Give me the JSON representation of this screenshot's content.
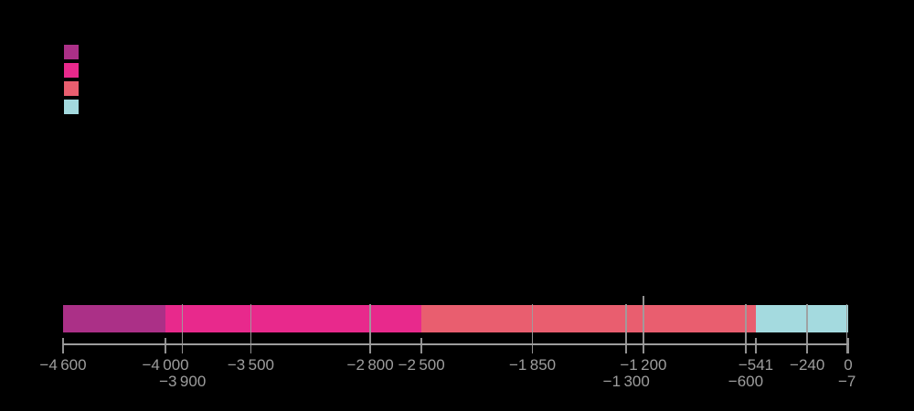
{
  "canvas": {
    "background": "#000000"
  },
  "palette": {
    "segment_purple": "#ab3087",
    "segment_magenta": "#e8298c",
    "segment_red": "#e95e6f",
    "segment_cyan": "#a4dadf",
    "axis_gray": "#9d9d9d"
  },
  "legend": {
    "swatches": [
      {
        "name": "swatch-1",
        "color": "#ab3087"
      },
      {
        "name": "swatch-2",
        "color": "#e8298c"
      },
      {
        "name": "swatch-3",
        "color": "#e95e6f"
      },
      {
        "name": "swatch-4",
        "color": "#a4dadf"
      }
    ]
  },
  "chart_data": {
    "type": "bar",
    "orientation": "horizontal",
    "title": "",
    "xlabel": "",
    "ylabel": "",
    "x_range": [
      -4600,
      0
    ],
    "grid": false,
    "legend_position": "top-left",
    "series": [
      {
        "name": "segment-1",
        "start": -4600,
        "end": -4000,
        "color": "#ab3087"
      },
      {
        "name": "segment-2",
        "start": -4000,
        "end": -2500,
        "color": "#e8298c"
      },
      {
        "name": "segment-3",
        "start": -2500,
        "end": -541,
        "color": "#e95e6f"
      },
      {
        "name": "segment-4",
        "start": -541,
        "end": 0,
        "color": "#a4dadf"
      }
    ],
    "ticks": [
      {
        "value": -4600,
        "label": "−4 600",
        "row": 1,
        "style": "tick"
      },
      {
        "value": -4000,
        "label": "−4 000",
        "row": 1,
        "style": "tick"
      },
      {
        "value": -3900,
        "label": "−3 900",
        "row": 2,
        "style": "divider"
      },
      {
        "value": -3500,
        "label": "−3 500",
        "row": 1,
        "style": "divider"
      },
      {
        "value": -2800,
        "label": "−2 800",
        "row": 1,
        "style": "divider"
      },
      {
        "value": -2500,
        "label": "−2 500",
        "row": 1,
        "style": "tick"
      },
      {
        "value": -1850,
        "label": "−1 850",
        "row": 1,
        "style": "divider"
      },
      {
        "value": -1300,
        "label": "−1 300",
        "row": 2,
        "style": "divider"
      },
      {
        "value": -1200,
        "label": "−1 200",
        "row": 1,
        "style": "divider-extended"
      },
      {
        "value": -600,
        "label": "−600",
        "row": 2,
        "style": "divider"
      },
      {
        "value": -541,
        "label": "−541",
        "row": 1,
        "style": "tick"
      },
      {
        "value": -240,
        "label": "−240",
        "row": 1,
        "style": "divider"
      },
      {
        "value": -7,
        "label": "−7",
        "row": 2,
        "style": "divider"
      },
      {
        "value": 0,
        "label": "0",
        "row": 1,
        "style": "tick"
      }
    ]
  }
}
